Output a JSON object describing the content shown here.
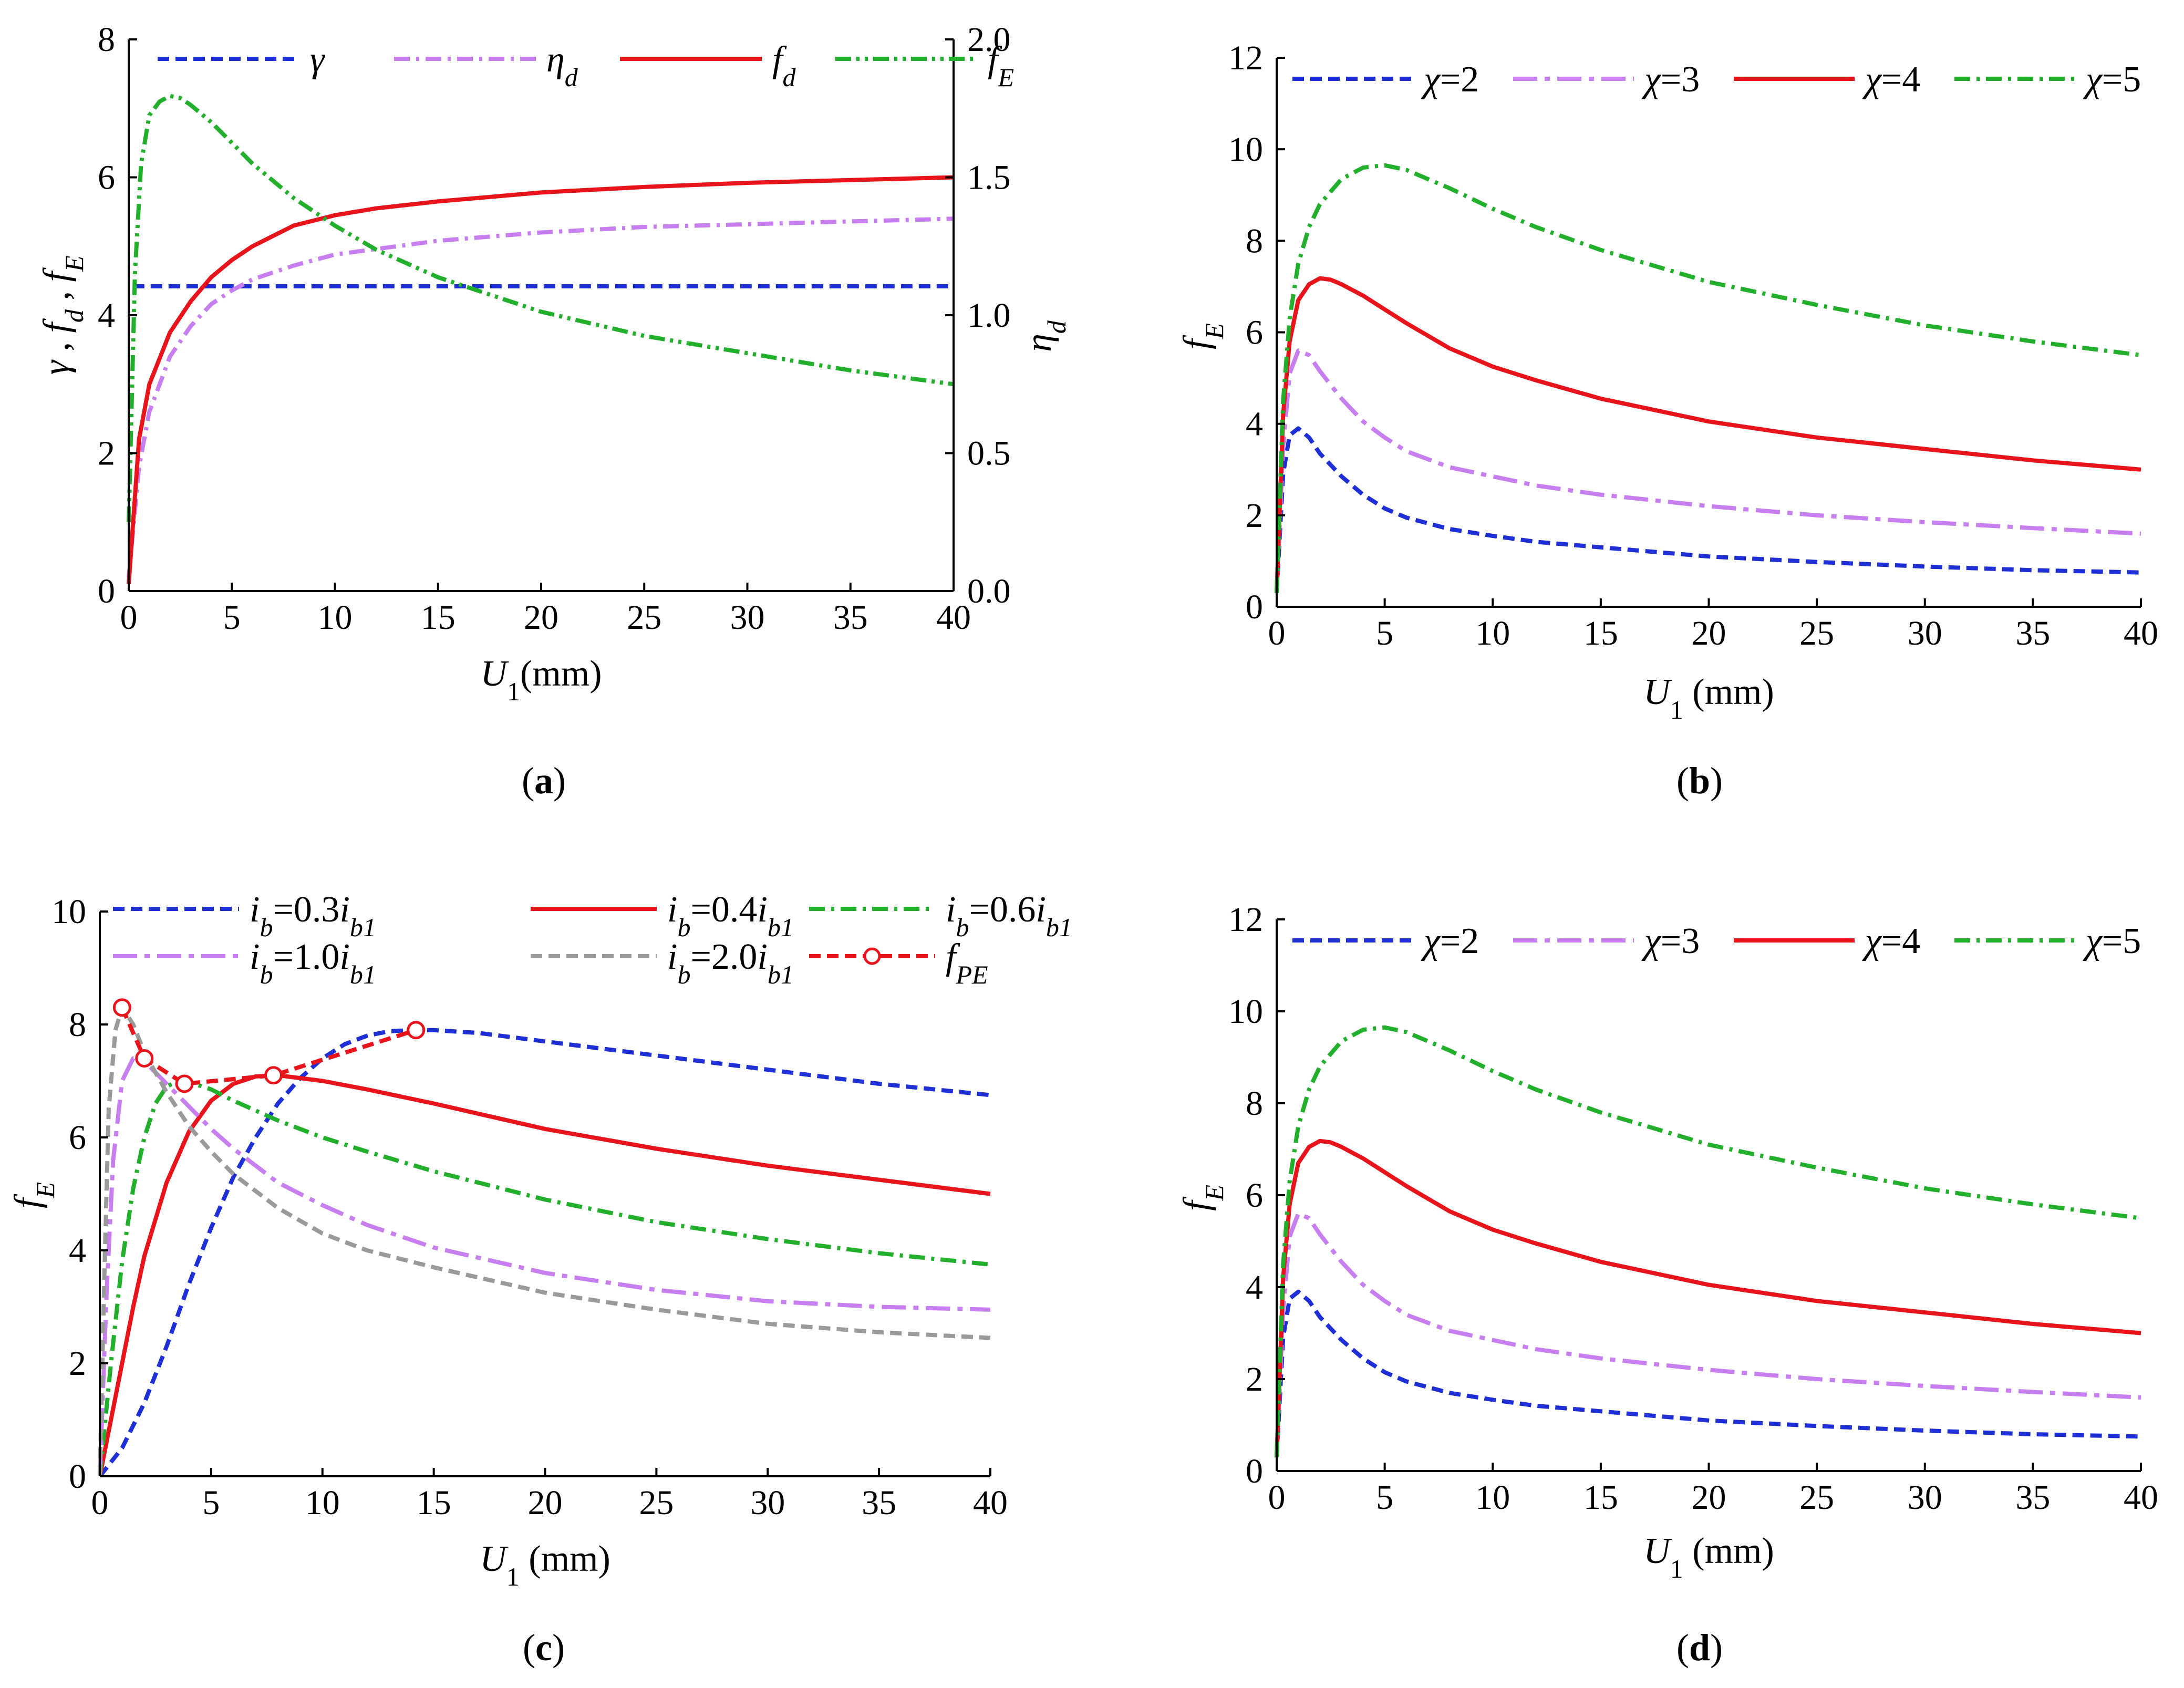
{
  "figure_caption_letters": [
    "a",
    "b",
    "c",
    "d"
  ],
  "chart_data": [
    {
      "id": "a",
      "type": "line",
      "caption": "(a)",
      "xlabel": "U1(mm)",
      "ylabel": "γ , fd , fE",
      "ylabel_right": "ηd",
      "xlim": [
        0,
        40
      ],
      "ylim": [
        0,
        8
      ],
      "ylim_right": [
        0,
        2.0
      ],
      "xticks": [
        "0",
        "5",
        "10",
        "15",
        "20",
        "25",
        "30",
        "35",
        "40"
      ],
      "yticks": [
        "0",
        "2",
        "4",
        "6",
        "8"
      ],
      "yticks_right": [
        "0.0",
        "0.5",
        "1.0",
        "1.5",
        "2.0"
      ],
      "legend_position": "top",
      "series": [
        {
          "name": "γ",
          "color": "#1f2fd6",
          "dash": "dash",
          "axis": "left",
          "x": [
            0.2,
            40
          ],
          "y": [
            4.42,
            4.42
          ]
        },
        {
          "name": "ηd",
          "color": "#c77ff0",
          "dash": "dashdot",
          "axis": "right",
          "x": [
            0,
            0.5,
            1,
            2,
            3,
            4,
            5,
            6,
            8,
            10,
            12,
            15,
            20,
            25,
            30,
            35,
            40
          ],
          "y": [
            0.05,
            0.45,
            0.65,
            0.85,
            0.96,
            1.04,
            1.09,
            1.13,
            1.18,
            1.22,
            1.24,
            1.27,
            1.3,
            1.32,
            1.33,
            1.34,
            1.35
          ]
        },
        {
          "name": "fd",
          "color": "#e8141c",
          "dash": "solid",
          "axis": "left",
          "x": [
            0,
            0.5,
            1,
            2,
            3,
            4,
            5,
            6,
            8,
            10,
            12,
            15,
            20,
            25,
            30,
            35,
            40
          ],
          "y": [
            0.1,
            2.2,
            3.0,
            3.75,
            4.2,
            4.55,
            4.8,
            5.0,
            5.3,
            5.45,
            5.55,
            5.65,
            5.78,
            5.86,
            5.92,
            5.96,
            6.0
          ]
        },
        {
          "name": "fE",
          "color": "#22b02c",
          "dash": "dashdotdot",
          "axis": "left",
          "x": [
            0,
            0.3,
            0.6,
            1,
            1.5,
            2,
            2.5,
            3,
            4,
            5,
            6,
            8,
            10,
            12,
            15,
            20,
            25,
            30,
            35,
            40
          ],
          "y": [
            1.0,
            4.6,
            6.2,
            6.9,
            7.1,
            7.18,
            7.15,
            7.05,
            6.8,
            6.5,
            6.2,
            5.7,
            5.3,
            4.95,
            4.55,
            4.05,
            3.7,
            3.45,
            3.2,
            3.0
          ]
        }
      ]
    },
    {
      "id": "b",
      "type": "line",
      "caption": "(b)",
      "xlabel": "U1 (mm)",
      "ylabel": "fE",
      "xlim": [
        0,
        40
      ],
      "ylim": [
        0,
        12
      ],
      "xticks": [
        "0",
        "5",
        "10",
        "15",
        "20",
        "25",
        "30",
        "35",
        "40"
      ],
      "yticks": [
        "0",
        "2",
        "4",
        "6",
        "8",
        "10",
        "12"
      ],
      "legend_position": "top",
      "series": [
        {
          "name": "χ=2",
          "color": "#1f2fd6",
          "dash": "dash",
          "x": [
            0,
            0.3,
            0.6,
            1,
            1.5,
            2,
            3,
            4,
            5,
            6,
            8,
            10,
            12,
            15,
            20,
            25,
            30,
            35,
            40
          ],
          "y": [
            0.3,
            2.9,
            3.75,
            3.9,
            3.7,
            3.35,
            2.85,
            2.45,
            2.15,
            1.95,
            1.7,
            1.55,
            1.42,
            1.3,
            1.1,
            0.98,
            0.88,
            0.8,
            0.75
          ]
        },
        {
          "name": "χ=3",
          "color": "#c77ff0",
          "dash": "longdashdot",
          "x": [
            0,
            0.3,
            0.6,
            1,
            1.5,
            2,
            3,
            4,
            5,
            6,
            8,
            10,
            12,
            15,
            20,
            25,
            30,
            35,
            40
          ],
          "y": [
            0.3,
            3.5,
            5.1,
            5.6,
            5.5,
            5.15,
            4.55,
            4.05,
            3.7,
            3.4,
            3.05,
            2.85,
            2.65,
            2.45,
            2.2,
            2.0,
            1.85,
            1.72,
            1.6
          ]
        },
        {
          "name": "χ=4",
          "color": "#e8141c",
          "dash": "solid",
          "x": [
            0,
            0.3,
            0.6,
            1,
            1.5,
            2,
            2.5,
            3,
            4,
            5,
            6,
            8,
            10,
            12,
            15,
            20,
            25,
            30,
            35,
            40
          ],
          "y": [
            0.3,
            4.2,
            5.8,
            6.7,
            7.05,
            7.18,
            7.15,
            7.05,
            6.8,
            6.5,
            6.2,
            5.65,
            5.25,
            4.95,
            4.55,
            4.05,
            3.7,
            3.45,
            3.2,
            3.0
          ]
        },
        {
          "name": "χ=5",
          "color": "#22b02c",
          "dash": "dashdot",
          "x": [
            0,
            0.3,
            0.6,
            1,
            1.5,
            2,
            3,
            4,
            5,
            6,
            8,
            10,
            12,
            15,
            20,
            25,
            30,
            35,
            40
          ],
          "y": [
            0.3,
            4.5,
            6.3,
            7.5,
            8.3,
            8.8,
            9.35,
            9.6,
            9.65,
            9.55,
            9.15,
            8.7,
            8.3,
            7.8,
            7.1,
            6.6,
            6.15,
            5.8,
            5.5
          ]
        }
      ]
    },
    {
      "id": "c",
      "type": "line",
      "caption": "(c)",
      "xlabel": "U1 (mm)",
      "ylabel": "fE",
      "xlim": [
        0,
        40
      ],
      "ylim": [
        0,
        10
      ],
      "xticks": [
        "0",
        "5",
        "10",
        "15",
        "20",
        "25",
        "30",
        "35",
        "40"
      ],
      "yticks": [
        "0",
        "2",
        "4",
        "6",
        "8",
        "10"
      ],
      "legend_position": "top",
      "series": [
        {
          "name": "ib=0.3ib1",
          "color": "#1f2fd6",
          "dash": "dash",
          "x": [
            0,
            1,
            2,
            3,
            4,
            5,
            6,
            7,
            8,
            9,
            10,
            11,
            12,
            13,
            14,
            15,
            17,
            20,
            25,
            30,
            35,
            40
          ],
          "y": [
            0,
            0.5,
            1.3,
            2.3,
            3.4,
            4.4,
            5.3,
            6.0,
            6.6,
            7.05,
            7.4,
            7.65,
            7.8,
            7.88,
            7.9,
            7.9,
            7.85,
            7.7,
            7.45,
            7.2,
            6.95,
            6.75
          ]
        },
        {
          "name": "ib=0.4ib1",
          "color": "#e8141c",
          "dash": "solid",
          "x": [
            0,
            0.5,
            1,
            1.5,
            2,
            3,
            4,
            5,
            6,
            7,
            8,
            9,
            10,
            12,
            15,
            20,
            25,
            30,
            35,
            40
          ],
          "y": [
            0,
            1.0,
            2.0,
            3.0,
            3.9,
            5.2,
            6.1,
            6.65,
            6.95,
            7.08,
            7.1,
            7.05,
            7.0,
            6.85,
            6.6,
            6.15,
            5.8,
            5.5,
            5.25,
            5.0
          ]
        },
        {
          "name": "ib=0.6ib1",
          "color": "#22b02c",
          "dash": "dashdot",
          "x": [
            0,
            0.5,
            1,
            1.5,
            2,
            2.5,
            3,
            3.5,
            4,
            5,
            6,
            8,
            10,
            12,
            15,
            20,
            25,
            30,
            35,
            40
          ],
          "y": [
            0,
            2.0,
            3.8,
            5.1,
            6.0,
            6.6,
            6.9,
            7.0,
            6.98,
            6.85,
            6.65,
            6.3,
            6.0,
            5.75,
            5.4,
            4.9,
            4.5,
            4.2,
            3.95,
            3.75
          ]
        },
        {
          "name": "ib=1.0ib1",
          "color": "#c77ff0",
          "dash": "longdashdot",
          "x": [
            0,
            0.3,
            0.6,
            1,
            1.5,
            2,
            3,
            4,
            5,
            6,
            8,
            10,
            12,
            15,
            20,
            25,
            30,
            35,
            40
          ],
          "y": [
            0,
            3.2,
            5.6,
            7.0,
            7.4,
            7.35,
            6.95,
            6.55,
            6.15,
            5.8,
            5.2,
            4.8,
            4.45,
            4.05,
            3.6,
            3.3,
            3.1,
            3.0,
            2.95
          ]
        },
        {
          "name": "ib=2.0ib1",
          "color": "#9a9a9a",
          "dash": "dash",
          "x": [
            0,
            0.2,
            0.4,
            0.7,
            1,
            1.5,
            2,
            3,
            4,
            5,
            6,
            8,
            10,
            12,
            15,
            20,
            25,
            30,
            35,
            40
          ],
          "y": [
            0,
            3.5,
            6.5,
            7.9,
            8.3,
            8.0,
            7.5,
            6.8,
            6.2,
            5.75,
            5.35,
            4.75,
            4.3,
            4.0,
            3.7,
            3.25,
            2.95,
            2.7,
            2.55,
            2.45
          ]
        },
        {
          "name": "fPE",
          "color": "#e8141c",
          "dash": "dash",
          "markers": true,
          "x": [
            1.0,
            2.0,
            3.8,
            7.8,
            14.2
          ],
          "y": [
            8.3,
            7.4,
            6.95,
            7.1,
            7.9
          ]
        }
      ]
    },
    {
      "id": "d",
      "type": "line",
      "caption": "(d)",
      "xlabel": "U1 (mm)",
      "ylabel": "fE",
      "xlim": [
        0,
        40
      ],
      "ylim": [
        0,
        12
      ],
      "xticks": [
        "0",
        "5",
        "10",
        "15",
        "20",
        "25",
        "30",
        "35",
        "40"
      ],
      "yticks": [
        "0",
        "2",
        "4",
        "6",
        "8",
        "10",
        "12"
      ],
      "legend_position": "top",
      "series": [
        {
          "name": "χ=2",
          "color": "#1f2fd6",
          "dash": "dash",
          "x": [
            0,
            0.3,
            0.6,
            1,
            1.5,
            2,
            3,
            4,
            5,
            6,
            8,
            10,
            12,
            15,
            20,
            25,
            30,
            35,
            40
          ],
          "y": [
            0.3,
            2.9,
            3.75,
            3.9,
            3.7,
            3.35,
            2.85,
            2.45,
            2.15,
            1.95,
            1.7,
            1.55,
            1.42,
            1.3,
            1.1,
            0.98,
            0.88,
            0.8,
            0.75
          ]
        },
        {
          "name": "χ=3",
          "color": "#c77ff0",
          "dash": "longdashdot",
          "x": [
            0,
            0.3,
            0.6,
            1,
            1.5,
            2,
            3,
            4,
            5,
            6,
            8,
            10,
            12,
            15,
            20,
            25,
            30,
            35,
            40
          ],
          "y": [
            0.3,
            3.5,
            5.1,
            5.6,
            5.5,
            5.15,
            4.55,
            4.05,
            3.7,
            3.4,
            3.05,
            2.85,
            2.65,
            2.45,
            2.2,
            2.0,
            1.85,
            1.72,
            1.6
          ]
        },
        {
          "name": "χ=4",
          "color": "#e8141c",
          "dash": "solid",
          "x": [
            0,
            0.3,
            0.6,
            1,
            1.5,
            2,
            2.5,
            3,
            4,
            5,
            6,
            8,
            10,
            12,
            15,
            20,
            25,
            30,
            35,
            40
          ],
          "y": [
            0.3,
            4.2,
            5.8,
            6.7,
            7.05,
            7.18,
            7.15,
            7.05,
            6.8,
            6.5,
            6.2,
            5.65,
            5.25,
            4.95,
            4.55,
            4.05,
            3.7,
            3.45,
            3.2,
            3.0
          ]
        },
        {
          "name": "χ=5",
          "color": "#22b02c",
          "dash": "dashdot",
          "x": [
            0,
            0.3,
            0.6,
            1,
            1.5,
            2,
            3,
            4,
            5,
            6,
            8,
            10,
            12,
            15,
            20,
            25,
            30,
            35,
            40
          ],
          "y": [
            0.3,
            4.5,
            6.3,
            7.5,
            8.3,
            8.8,
            9.35,
            9.6,
            9.65,
            9.55,
            9.15,
            8.7,
            8.3,
            7.8,
            7.1,
            6.6,
            6.15,
            5.8,
            5.5
          ]
        }
      ]
    }
  ]
}
